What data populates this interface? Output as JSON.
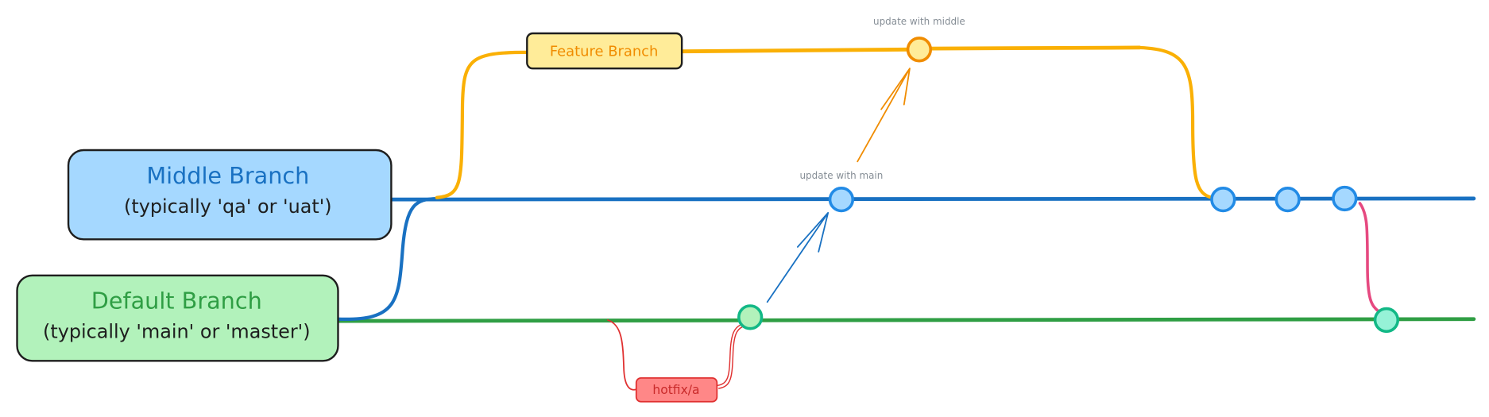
{
  "branches": {
    "middle": {
      "title": "Middle Branch",
      "subtitle": "(typically 'qa' or 'uat')",
      "fill": "#a5d8ff",
      "color": "#1971c2"
    },
    "default": {
      "title": "Default Branch",
      "subtitle": "(typically 'main' or 'master')",
      "fill": "#b2f2bb",
      "color": "#2f9e44"
    },
    "feature": {
      "label": "Feature Branch",
      "fill": "#ffec99",
      "color": "#f08c00",
      "line": "#fab005"
    },
    "hotfix": {
      "label": "hotfix/a",
      "fill": "#ff8787",
      "color": "#e03131"
    }
  },
  "annotations": {
    "update_middle": "update with middle",
    "update_main": "update with main"
  },
  "colors": {
    "merge_line": "#e64980",
    "commit_stroke_blue": "#228be6",
    "commit_stroke_green": "#12b886"
  }
}
